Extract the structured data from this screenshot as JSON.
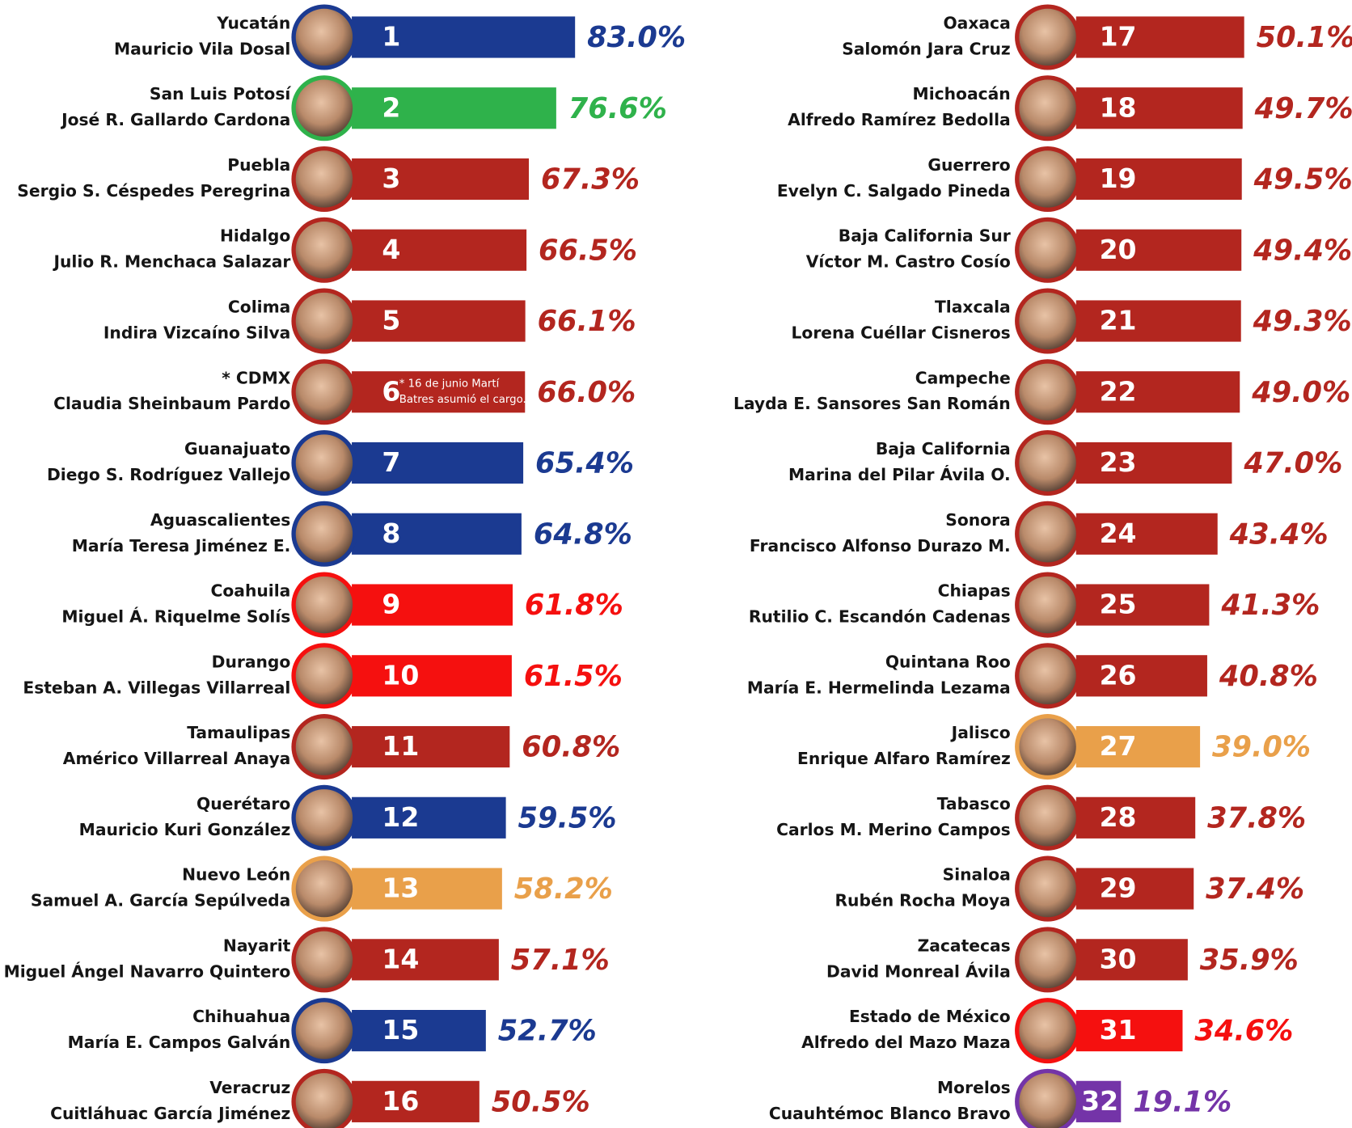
{
  "chart_data": [
    {
      "type": "bar",
      "categories": [
        "Yucatán",
        "San Luis Potosí",
        "Puebla",
        "Hidalgo",
        "Colima",
        "* CDMX",
        "Guanajuato",
        "Aguascalientes",
        "Coahuila",
        "Durango",
        "Tamaulipas",
        "Querétaro",
        "Nuevo León",
        "Nayarit",
        "Chihuahua",
        "Veracruz"
      ],
      "names": [
        "Mauricio Vila Dosal",
        "José R. Gallardo Cardona",
        "Sergio S. Céspedes Peregrina",
        "Julio R. Menchaca Salazar",
        "Indira Vizcaíno Silva",
        "Claudia Sheinbaum Pardo",
        "Diego S. Rodríguez Vallejo",
        "María Teresa Jiménez E.",
        "Miguel Á. Riquelme Solís",
        "Esteban A. Villegas Villarreal",
        "Américo Villarreal Anaya",
        "Mauricio Kuri González",
        "Samuel A. García Sepúlveda",
        "Miguel Ángel Navarro Quintero",
        "María E. Campos Galván",
        "Cuitláhuac García Jiménez"
      ],
      "ranks": [
        1,
        2,
        3,
        4,
        5,
        6,
        7,
        8,
        9,
        10,
        11,
        12,
        13,
        14,
        15,
        16
      ],
      "values": [
        83.0,
        76.6,
        67.3,
        66.5,
        66.1,
        66.0,
        65.4,
        64.8,
        61.8,
        61.5,
        60.8,
        59.5,
        58.2,
        57.1,
        52.7,
        50.5
      ],
      "value_labels": [
        "83.0%",
        "76.6%",
        "67.3%",
        "66.5%",
        "66.1%",
        "66.0%",
        "65.4%",
        "64.8%",
        "61.8%",
        "61.5%",
        "60.8%",
        "59.5%",
        "58.2%",
        "57.1%",
        "52.7%",
        "50.5%"
      ],
      "colors": [
        "#1b3a91",
        "#2fb24b",
        "#b3261f",
        "#b3261f",
        "#b3261f",
        "#b3261f",
        "#1b3a91",
        "#1b3a91",
        "#f5100f",
        "#f5100f",
        "#b3261f",
        "#1b3a91",
        "#e9a04a",
        "#b3261f",
        "#1b3a91",
        "#b3261f"
      ],
      "note": [
        "* 16 de junio Martí",
        "Batres asumió el cargo."
      ]
    },
    {
      "type": "bar",
      "categories": [
        "Oaxaca",
        "Michoacán",
        "Guerrero",
        "Baja California Sur",
        "Tlaxcala",
        "Campeche",
        "Baja California",
        "Sonora",
        "Chiapas",
        "Quintana Roo",
        "Jalisco",
        "Tabasco",
        "Sinaloa",
        "Zacatecas",
        "Estado de México",
        "Morelos"
      ],
      "names": [
        "Salomón Jara Cruz",
        "Alfredo Ramírez Bedolla",
        "Evelyn C. Salgado Pineda",
        "Víctor M. Castro Cosío",
        "Lorena Cuéllar Cisneros",
        "Layda E. Sansores San Román",
        "Marina del Pilar Ávila O.",
        "Francisco Alfonso Durazo M.",
        "Rutilio C. Escandón Cadenas",
        "María E. Hermelinda Lezama",
        "Enrique Alfaro Ramírez",
        "Carlos M. Merino Campos",
        "Rubén Rocha Moya",
        "David Monreal Ávila",
        "Alfredo del Mazo Maza",
        "Cuauhtémoc Blanco Bravo"
      ],
      "ranks": [
        17,
        18,
        19,
        20,
        21,
        22,
        23,
        24,
        25,
        26,
        27,
        28,
        29,
        30,
        31,
        32
      ],
      "values": [
        50.1,
        49.7,
        49.5,
        49.4,
        49.3,
        49.0,
        47.0,
        43.4,
        41.3,
        40.8,
        39.0,
        37.8,
        37.4,
        35.9,
        34.6,
        19.1
      ],
      "value_labels": [
        "50.1%",
        "49.7%",
        "49.5%",
        "49.4%",
        "49.3%",
        "49.0%",
        "47.0%",
        "43.4%",
        "41.3%",
        "40.8%",
        "39.0%",
        "37.8%",
        "37.4%",
        "35.9%",
        "34.6%",
        "19.1%"
      ],
      "colors": [
        "#b3261f",
        "#b3261f",
        "#b3261f",
        "#b3261f",
        "#b3261f",
        "#b3261f",
        "#b3261f",
        "#b3261f",
        "#b3261f",
        "#b3261f",
        "#e9a04a",
        "#b3261f",
        "#b3261f",
        "#b3261f",
        "#f5100f",
        "#7434a8"
      ]
    }
  ]
}
